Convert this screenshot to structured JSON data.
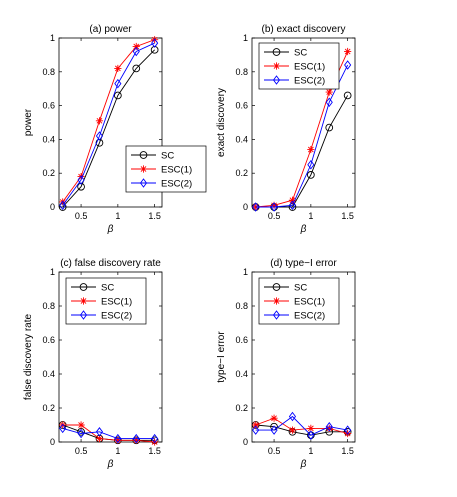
{
  "colors": {
    "SC": "#000000",
    "ESC(1)": "#ff0000",
    "ESC(2)": "#0000ff"
  },
  "chart_data": [
    {
      "type": "line",
      "title": "(a) power",
      "xlabel": "β",
      "ylabel": "power",
      "x": [
        0.25,
        0.5,
        0.75,
        1.0,
        1.25,
        1.5
      ],
      "xlim": [
        0.2,
        1.6
      ],
      "ylim": [
        0,
        1
      ],
      "xticks": [
        "0.5",
        "1",
        "1.5"
      ],
      "yticks": [
        "0",
        "0.2",
        "0.4",
        "0.6",
        "0.8",
        "1"
      ],
      "legend_position": "bottom-right",
      "series": [
        {
          "name": "SC",
          "marker": "circle",
          "values": [
            0.0,
            0.12,
            0.38,
            0.66,
            0.82,
            0.93
          ]
        },
        {
          "name": "ESC(1)",
          "marker": "star",
          "values": [
            0.03,
            0.18,
            0.51,
            0.82,
            0.95,
            0.99
          ]
        },
        {
          "name": "ESC(2)",
          "marker": "diamond",
          "values": [
            0.01,
            0.16,
            0.42,
            0.73,
            0.92,
            0.97
          ]
        }
      ]
    },
    {
      "type": "line",
      "title": "(b) exact discovery",
      "xlabel": "β",
      "ylabel": "exact discovery",
      "x": [
        0.25,
        0.5,
        0.75,
        1.0,
        1.25,
        1.5
      ],
      "xlim": [
        0.2,
        1.6
      ],
      "ylim": [
        0,
        1
      ],
      "xticks": [
        "0.5",
        "1",
        "1.5"
      ],
      "yticks": [
        "0",
        "0.2",
        "0.4",
        "0.6",
        "0.8",
        "1"
      ],
      "legend_position": "top-left",
      "series": [
        {
          "name": "SC",
          "marker": "circle",
          "values": [
            0.0,
            0.0,
            0.0,
            0.19,
            0.47,
            0.66
          ]
        },
        {
          "name": "ESC(1)",
          "marker": "star",
          "values": [
            0.0,
            0.01,
            0.04,
            0.34,
            0.68,
            0.92
          ]
        },
        {
          "name": "ESC(2)",
          "marker": "diamond",
          "values": [
            0.0,
            0.0,
            0.01,
            0.25,
            0.62,
            0.84
          ]
        }
      ]
    },
    {
      "type": "line",
      "title": "(c) false discovery rate",
      "xlabel": "β",
      "ylabel": "false discovery rate",
      "x": [
        0.25,
        0.5,
        0.75,
        1.0,
        1.25,
        1.5
      ],
      "xlim": [
        0.2,
        1.6
      ],
      "ylim": [
        0,
        1
      ],
      "xticks": [
        "0.5",
        "1",
        "1.5"
      ],
      "yticks": [
        "0",
        "0.2",
        "0.4",
        "0.6",
        "0.8",
        "1"
      ],
      "legend_position": "top-left",
      "series": [
        {
          "name": "SC",
          "marker": "circle",
          "values": [
            0.1,
            0.06,
            0.02,
            0.01,
            0.01,
            0.01
          ]
        },
        {
          "name": "ESC(1)",
          "marker": "star",
          "values": [
            0.1,
            0.1,
            0.02,
            0.01,
            0.01,
            0.0
          ]
        },
        {
          "name": "ESC(2)",
          "marker": "diamond",
          "values": [
            0.08,
            0.05,
            0.06,
            0.02,
            0.02,
            0.02
          ]
        }
      ]
    },
    {
      "type": "line",
      "title": "(d) type−I error",
      "xlabel": "β",
      "ylabel": "type−I error",
      "x": [
        0.25,
        0.5,
        0.75,
        1.0,
        1.25,
        1.5
      ],
      "xlim": [
        0.2,
        1.6
      ],
      "ylim": [
        0,
        1
      ],
      "xticks": [
        "0.5",
        "1",
        "1.5"
      ],
      "yticks": [
        "0",
        "0.2",
        "0.4",
        "0.6",
        "0.8",
        "1"
      ],
      "legend_position": "top-left",
      "series": [
        {
          "name": "SC",
          "marker": "circle",
          "values": [
            0.1,
            0.09,
            0.06,
            0.04,
            0.06,
            0.06
          ]
        },
        {
          "name": "ESC(1)",
          "marker": "star",
          "values": [
            0.1,
            0.14,
            0.07,
            0.08,
            0.08,
            0.05
          ]
        },
        {
          "name": "ESC(2)",
          "marker": "diamond",
          "values": [
            0.07,
            0.07,
            0.15,
            0.04,
            0.09,
            0.07
          ]
        }
      ]
    }
  ]
}
